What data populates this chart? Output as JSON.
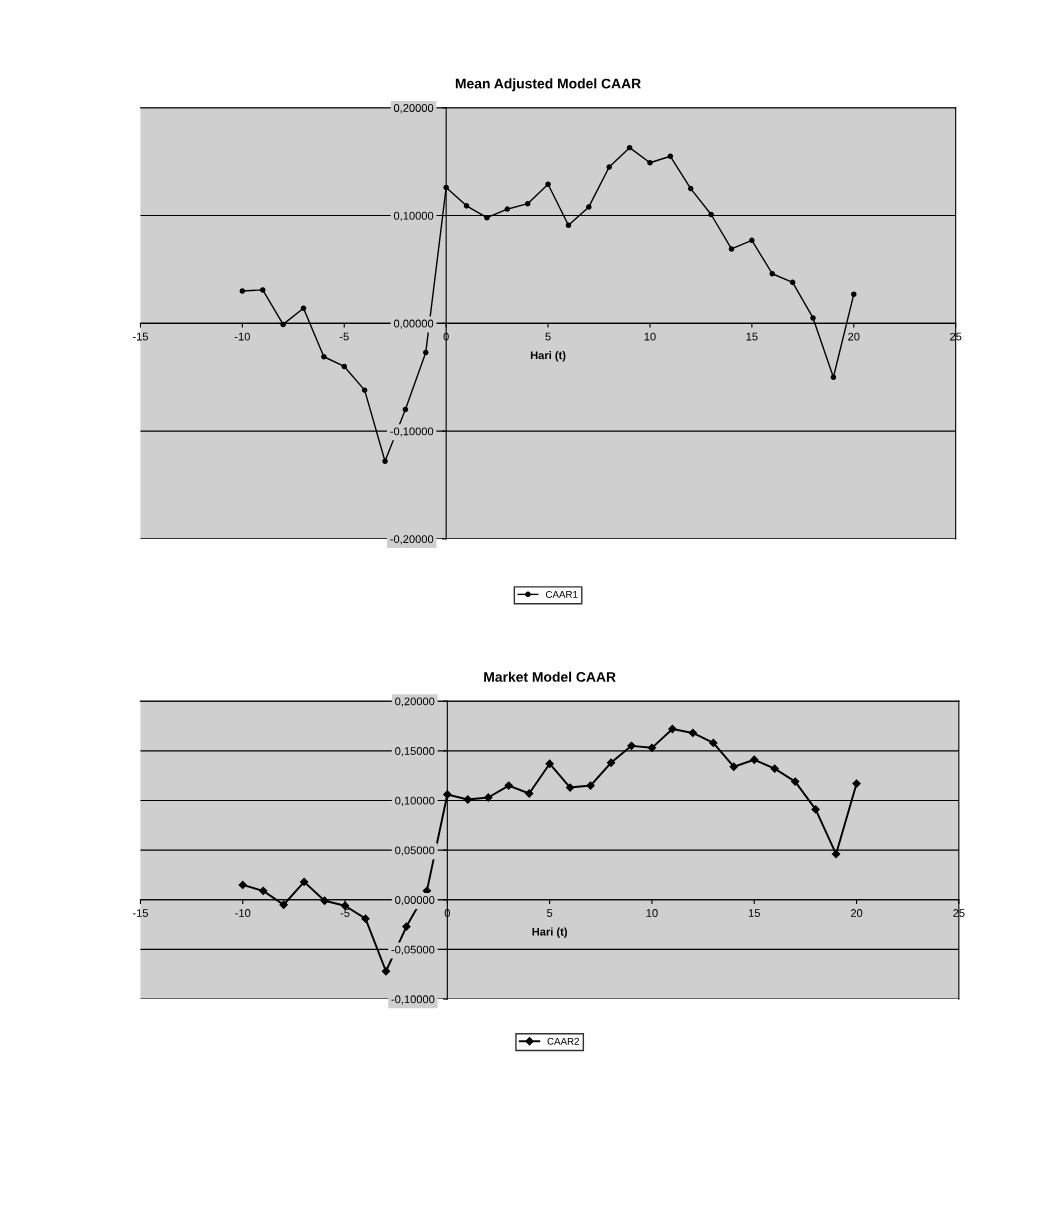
{
  "chart_data": [
    {
      "type": "line",
      "title": "Mean Adjusted Model CAAR",
      "xlabel": "Hari (t)",
      "x": [
        -10,
        -9,
        -8,
        -7,
        -6,
        -5,
        -4,
        -3,
        -2,
        -1,
        0,
        1,
        2,
        3,
        4,
        5,
        6,
        7,
        8,
        9,
        10,
        11,
        12,
        13,
        14,
        15,
        16,
        17,
        18,
        19,
        20
      ],
      "series": [
        {
          "name": "CAAR1",
          "color": "#000000",
          "values": [
            0.03,
            0.031,
            -0.001,
            0.014,
            -0.031,
            -0.04,
            -0.062,
            -0.128,
            -0.08,
            -0.027,
            0.126,
            0.109,
            0.098,
            0.106,
            0.111,
            0.129,
            0.091,
            0.108,
            0.145,
            0.163,
            0.149,
            0.155,
            0.125,
            0.101,
            0.069,
            0.077,
            0.046,
            0.038,
            0.005,
            -0.05,
            0.027
          ]
        }
      ],
      "xlim": [
        -15,
        25
      ],
      "xticks": [
        -15,
        -10,
        -5,
        0,
        5,
        10,
        15,
        20,
        25
      ],
      "ylim": [
        -0.2,
        0.2
      ],
      "yticks": [
        {
          "value": -0.2,
          "label": "-0,20000"
        },
        {
          "value": -0.1,
          "label": "-0,10000"
        },
        {
          "value": 0,
          "label": "0,00000"
        },
        {
          "value": 0.1,
          "label": "0,10000"
        },
        {
          "value": 0.2,
          "label": "0,20000"
        }
      ],
      "grid": "y",
      "legend": "bottom",
      "marker": "circle",
      "line_style": "solid"
    },
    {
      "type": "line",
      "title": "Market Model CAAR",
      "xlabel": "Hari (t)",
      "x": [
        -10,
        -9,
        -8,
        -7,
        -6,
        -5,
        -4,
        -3,
        -2,
        -1,
        0,
        1,
        2,
        3,
        4,
        5,
        6,
        7,
        8,
        9,
        10,
        11,
        12,
        13,
        14,
        15,
        16,
        17,
        18,
        19,
        20
      ],
      "series": [
        {
          "name": "CAAR2",
          "color": "#000000",
          "values": [
            0.015,
            0.009,
            -0.005,
            0.018,
            -0.001,
            -0.006,
            -0.019,
            -0.072,
            -0.027,
            0.009,
            0.106,
            0.101,
            0.103,
            0.115,
            0.107,
            0.137,
            0.113,
            0.115,
            0.138,
            0.155,
            0.153,
            0.172,
            0.168,
            0.158,
            0.134,
            0.141,
            0.132,
            0.119,
            0.091,
            0.046,
            0.117
          ]
        }
      ],
      "xlim": [
        -15,
        25
      ],
      "xticks": [
        -15,
        -10,
        -5,
        0,
        5,
        10,
        15,
        20,
        25
      ],
      "ylim": [
        -0.1,
        0.2
      ],
      "yticks": [
        {
          "value": -0.1,
          "label": "-0,10000"
        },
        {
          "value": -0.05,
          "label": "-0,05000"
        },
        {
          "value": 0,
          "label": "0,00000"
        },
        {
          "value": 0.05,
          "label": "0,05000"
        },
        {
          "value": 0.1,
          "label": "0,10000"
        },
        {
          "value": 0.15,
          "label": "0,15000"
        },
        {
          "value": 0.2,
          "label": "0,20000"
        }
      ],
      "grid": "y",
      "legend": "bottom",
      "marker": "diamond",
      "line_style": "solid"
    }
  ]
}
